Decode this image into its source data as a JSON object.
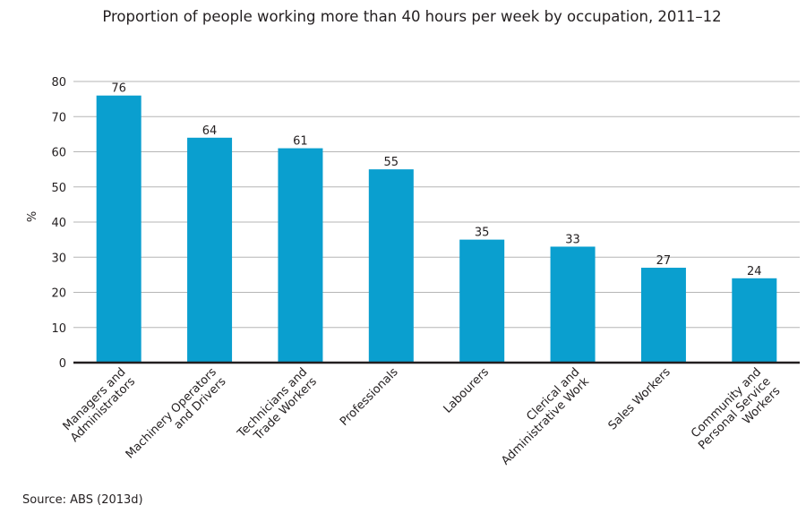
{
  "chart_data": {
    "type": "bar",
    "title": "Proportion of people working more than 40 hours per week by occupation, 2011–12",
    "xlabel": "",
    "ylabel": "%",
    "ylim": [
      0,
      80
    ],
    "yticks": [
      0,
      10,
      20,
      30,
      40,
      50,
      60,
      70,
      80
    ],
    "grid": true,
    "categories": [
      [
        "Managers and",
        "Administrators"
      ],
      [
        "Machinery Operators",
        "and Drivers"
      ],
      [
        "Technicians and",
        "Trade Workers"
      ],
      [
        "Professionals"
      ],
      [
        "Labourers"
      ],
      [
        "Clerical and",
        "Administrative Work"
      ],
      [
        "Sales Workers"
      ],
      [
        "Community and",
        "Personal Service",
        "Workers"
      ]
    ],
    "values": [
      76,
      64,
      61,
      55,
      35,
      33,
      27,
      24
    ],
    "bar_color": "#0a9fcf",
    "source": "Source: ABS (2013d)"
  }
}
